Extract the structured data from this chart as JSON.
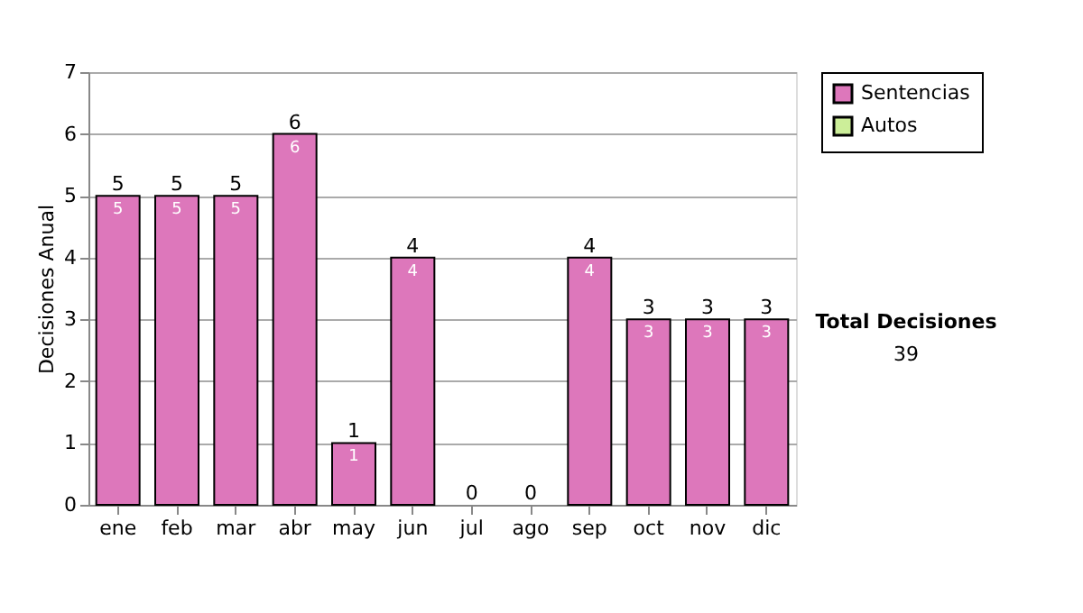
{
  "chart_data": {
    "type": "bar",
    "stacked": true,
    "ylabel": "Decisiones Anual",
    "categories": [
      "ene",
      "feb",
      "mar",
      "abr",
      "may",
      "jun",
      "jul",
      "ago",
      "sep",
      "oct",
      "nov",
      "dic"
    ],
    "series": [
      {
        "name": "Sentencias",
        "color": "#dd77bb",
        "values": [
          5,
          5,
          5,
          6,
          1,
          4,
          0,
          0,
          4,
          3,
          3,
          3
        ],
        "value_labels": [
          "5",
          "5",
          "5",
          "6",
          "1",
          "4",
          null,
          null,
          "4",
          "3",
          "3",
          "3"
        ]
      },
      {
        "name": "Autos",
        "color": "#ccee99",
        "values": [
          0,
          0,
          0,
          0,
          0,
          0,
          0,
          0,
          0,
          0,
          0,
          0
        ]
      }
    ],
    "totals": [
      "5",
      "5",
      "5",
      "6",
      "1",
      "4",
      "0",
      "0",
      "4",
      "3",
      "3",
      "3"
    ],
    "ylim": [
      0,
      7
    ],
    "yticks": [
      0,
      1,
      2,
      3,
      4,
      5,
      6,
      7
    ],
    "grid": "y",
    "legend": "right",
    "annotations": [
      "Total Decisiones",
      "39"
    ]
  }
}
